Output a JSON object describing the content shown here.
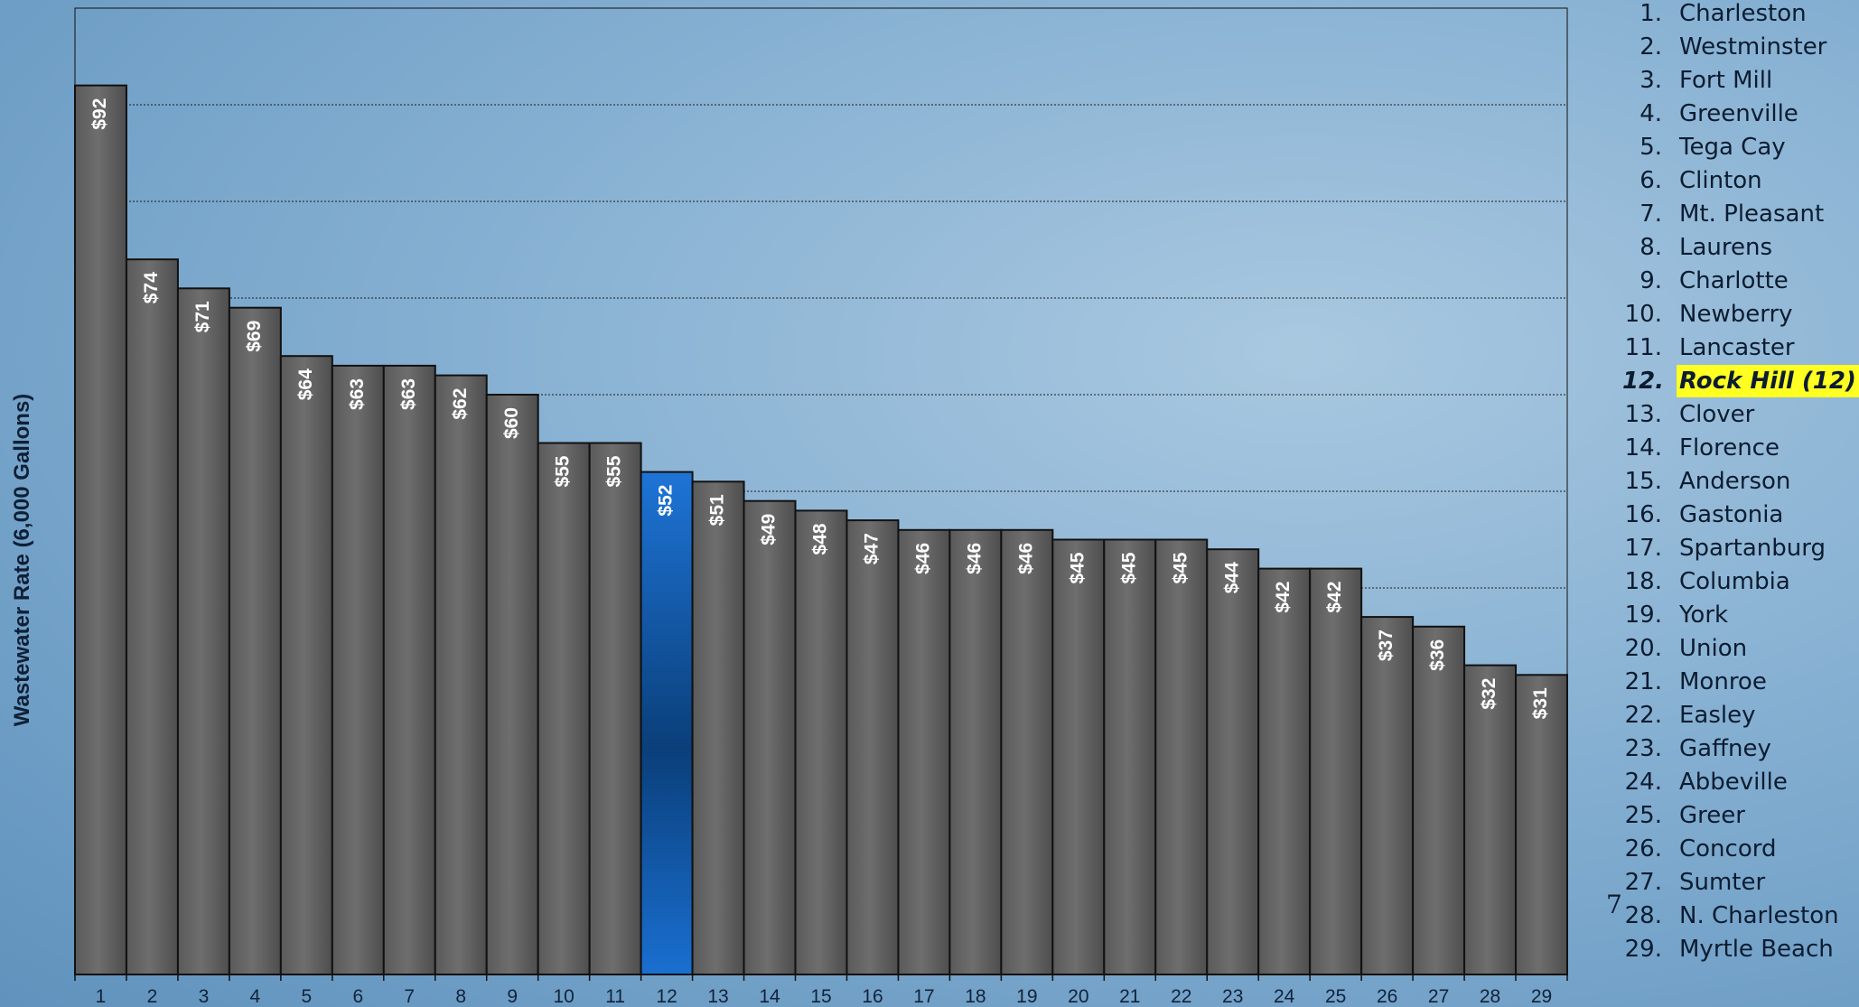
{
  "chart_data": {
    "type": "bar",
    "ylabel": "Wastewater Rate (6,000 Gallons)",
    "xlabel": "",
    "title": "",
    "categories": [
      "1",
      "2",
      "3",
      "4",
      "5",
      "6",
      "7",
      "8",
      "9",
      "10",
      "11",
      "12",
      "13",
      "14",
      "15",
      "16",
      "17",
      "18",
      "19",
      "20",
      "21",
      "22",
      "23",
      "24",
      "25",
      "26",
      "27",
      "28",
      "29"
    ],
    "values": [
      92,
      74,
      71,
      69,
      64,
      63,
      63,
      62,
      60,
      55,
      55,
      52,
      51,
      49,
      48,
      47,
      46,
      46,
      46,
      45,
      45,
      45,
      44,
      42,
      42,
      37,
      36,
      32,
      31
    ],
    "value_labels": [
      "$92",
      "$74",
      "$71",
      "$69",
      "$64",
      "$63",
      "$63",
      "$62",
      "$60",
      "$55",
      "$55",
      "$52",
      "$51",
      "$49",
      "$48",
      "$47",
      "$46",
      "$46",
      "$46",
      "$45",
      "$45",
      "$45",
      "$44",
      "$42",
      "$42",
      "$37",
      "$36",
      "$32",
      "$31"
    ],
    "highlight_index": 11,
    "ylim": [
      0,
      100
    ],
    "gridlines": [
      10,
      20,
      30,
      40,
      50,
      60,
      70,
      80,
      90
    ],
    "grid": true,
    "bar_color": "#6b6b6b",
    "highlight_color": "#1a6fd0"
  },
  "legend": {
    "items": [
      {
        "num": "1.",
        "name": "Charleston"
      },
      {
        "num": "2.",
        "name": "Westminster"
      },
      {
        "num": "3.",
        "name": "Fort Mill"
      },
      {
        "num": "4.",
        "name": "Greenville"
      },
      {
        "num": "5.",
        "name": "Tega Cay"
      },
      {
        "num": "6.",
        "name": "Clinton"
      },
      {
        "num": "7.",
        "name": "Mt. Pleasant"
      },
      {
        "num": "8.",
        "name": "Laurens"
      },
      {
        "num": "9.",
        "name": "Charlotte"
      },
      {
        "num": "10.",
        "name": "Newberry"
      },
      {
        "num": "11.",
        "name": "Lancaster"
      },
      {
        "num": "12.",
        "name": "Rock Hill (12)",
        "highlight": true
      },
      {
        "num": "13.",
        "name": "Clover"
      },
      {
        "num": "14.",
        "name": "Florence"
      },
      {
        "num": "15.",
        "name": "Anderson"
      },
      {
        "num": "16.",
        "name": "Gastonia"
      },
      {
        "num": "17.",
        "name": "Spartanburg"
      },
      {
        "num": "18.",
        "name": "Columbia"
      },
      {
        "num": "19.",
        "name": "York"
      },
      {
        "num": "20.",
        "name": "Union"
      },
      {
        "num": "21.",
        "name": "Monroe"
      },
      {
        "num": "22.",
        "name": "Easley"
      },
      {
        "num": "23.",
        "name": "Gaffney"
      },
      {
        "num": "24.",
        "name": "Abbeville"
      },
      {
        "num": "25.",
        "name": "Greer"
      },
      {
        "num": "26.",
        "name": "Concord"
      },
      {
        "num": "27.",
        "name": "Sumter"
      },
      {
        "num": "28.",
        "name": "N. Charleston"
      },
      {
        "num": "29.",
        "name": "Myrtle Beach"
      }
    ]
  },
  "page_number": "7"
}
